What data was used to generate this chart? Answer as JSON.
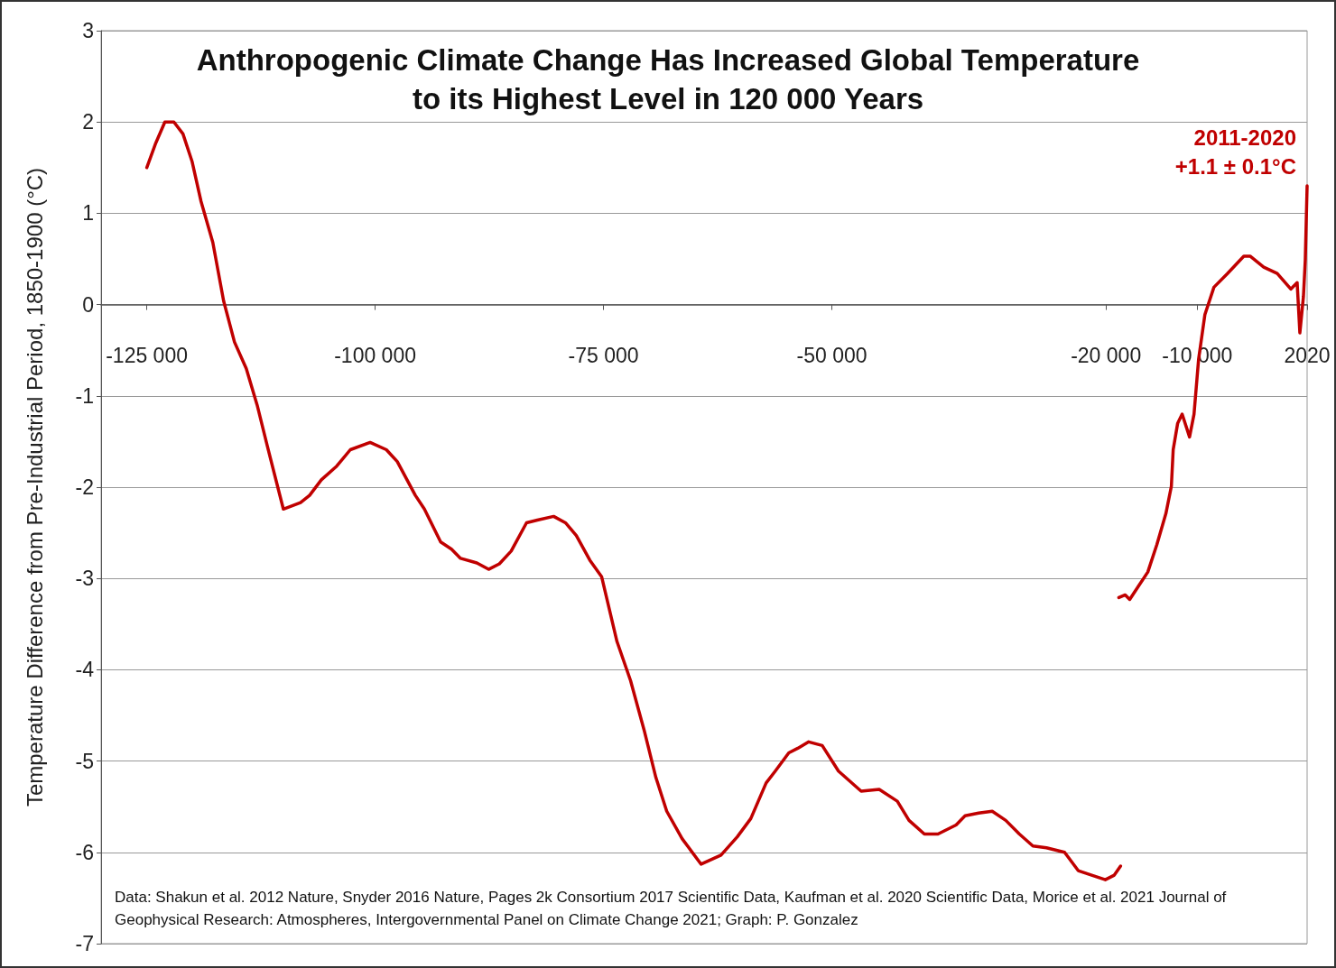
{
  "chart_data": {
    "type": "line",
    "title": "Anthropogenic Climate Change Has Increased Global Temperature\nto its Highest Level in 120 000 Years",
    "ylabel": "Temperature Difference from Pre-Industrial Period, 1850-1900 (°C)",
    "xlim": [
      -130000,
      2020
    ],
    "xticks": [
      {
        "value": -125000,
        "label": "-125 000"
      },
      {
        "value": -100000,
        "label": "-100 000"
      },
      {
        "value": -75000,
        "label": "-75 000"
      },
      {
        "value": -50000,
        "label": "-50 000"
      },
      {
        "value": -20000,
        "label": "-20 000"
      },
      {
        "value": -10000,
        "label": "-10 000"
      },
      2020
    ],
    "ylim": [
      -7,
      3
    ],
    "yticks": [
      -7,
      -6,
      -5,
      -4,
      -3,
      -2,
      -1,
      0,
      1,
      2,
      3
    ],
    "grid": "y",
    "series": [
      {
        "color": "#c00000",
        "x": [
          -125000,
          -124010,
          -123020,
          -122030,
          -121040,
          -120050,
          -119060,
          -117770,
          -116590,
          -115400,
          -114110,
          -112920,
          -111830,
          -110050,
          -108170,
          -107180,
          -105890,
          -104210,
          -102720,
          -100550,
          -98770,
          -97580,
          -95600,
          -94610,
          -92830,
          -91640,
          -90650,
          -88870,
          -87580,
          -86400,
          -85110,
          -83430,
          -82240,
          -80460,
          -79170,
          -77980,
          -76500,
          -75210,
          -73530,
          -72040,
          -70560,
          -69270,
          -68080,
          -66400,
          -64320,
          -62140,
          -60360,
          -58880,
          -57200,
          -56200,
          -54720,
          -53730,
          -52540,
          -51060,
          -49280,
          -46800,
          -44820,
          -42840,
          -41560,
          -39880,
          -38390,
          -36410,
          -35420,
          -33940,
          -32450,
          -30970,
          -29480,
          -28000,
          -26510,
          -24530,
          -23040,
          -21560,
          -20070,
          -19090,
          -18400
        ],
        "values": [
          1.5,
          1.77,
          2.0,
          2.0,
          1.87,
          1.57,
          1.13,
          0.68,
          0.04,
          -0.41,
          -0.7,
          -1.1,
          -1.54,
          -2.24,
          -2.17,
          -2.09,
          -1.92,
          -1.77,
          -1.59,
          -1.51,
          -1.59,
          -1.72,
          -2.09,
          -2.24,
          -2.6,
          -2.68,
          -2.78,
          -2.83,
          -2.9,
          -2.84,
          -2.7,
          -2.39,
          -2.36,
          -2.32,
          -2.39,
          -2.53,
          -2.8,
          -2.98,
          -3.69,
          -4.12,
          -4.66,
          -5.18,
          -5.55,
          -5.85,
          -6.13,
          -6.03,
          -5.83,
          -5.63,
          -5.24,
          -5.11,
          -4.91,
          -4.86,
          -4.79,
          -4.83,
          -5.11,
          -5.33,
          -5.31,
          -5.44,
          -5.65,
          -5.8,
          -5.8,
          -5.7,
          -5.6,
          -5.57,
          -5.55,
          -5.65,
          -5.8,
          -5.93,
          -5.95,
          -6.0,
          -6.2,
          -6.25,
          -6.3,
          -6.25,
          -6.15
        ]
      },
      {
        "color": "#c00000",
        "x": [
          -18590,
          -17890,
          -17400,
          -16410,
          -15420,
          -14430,
          -13440,
          -12840,
          -12640,
          -12150,
          -11660,
          -10850,
          -10360,
          -9860,
          -9170,
          -8180,
          -6700,
          -4910,
          -4220,
          -2730,
          -1250,
          235,
          930,
          1225,
          1620,
          1820,
          2020
        ],
        "values": [
          -3.21,
          -3.18,
          -3.23,
          -3.08,
          -2.93,
          -2.63,
          -2.29,
          -1.99,
          -1.59,
          -1.3,
          -1.2,
          -1.45,
          -1.2,
          -0.6,
          -0.11,
          0.19,
          0.34,
          0.53,
          0.53,
          0.41,
          0.34,
          0.17,
          0.24,
          -0.31,
          0.09,
          0.49,
          1.3
        ]
      }
    ],
    "annotations": [
      {
        "text": "2011-2020\n+1.1 ± 0.1°C",
        "x": 2020,
        "y": 1.3
      },
      "Data: Shakun et al. 2012 Nature, Snyder 2016 Nature, Pages 2k Consortium 2017 Scientific Data, Kaufman et al. 2020 Scientific Data, Morice et al. 2021 Journal of Geophysical Research: Atmospheres, Intergovernmental Panel on Climate Change 2021; Graph: P. Gonzalez"
    ]
  }
}
